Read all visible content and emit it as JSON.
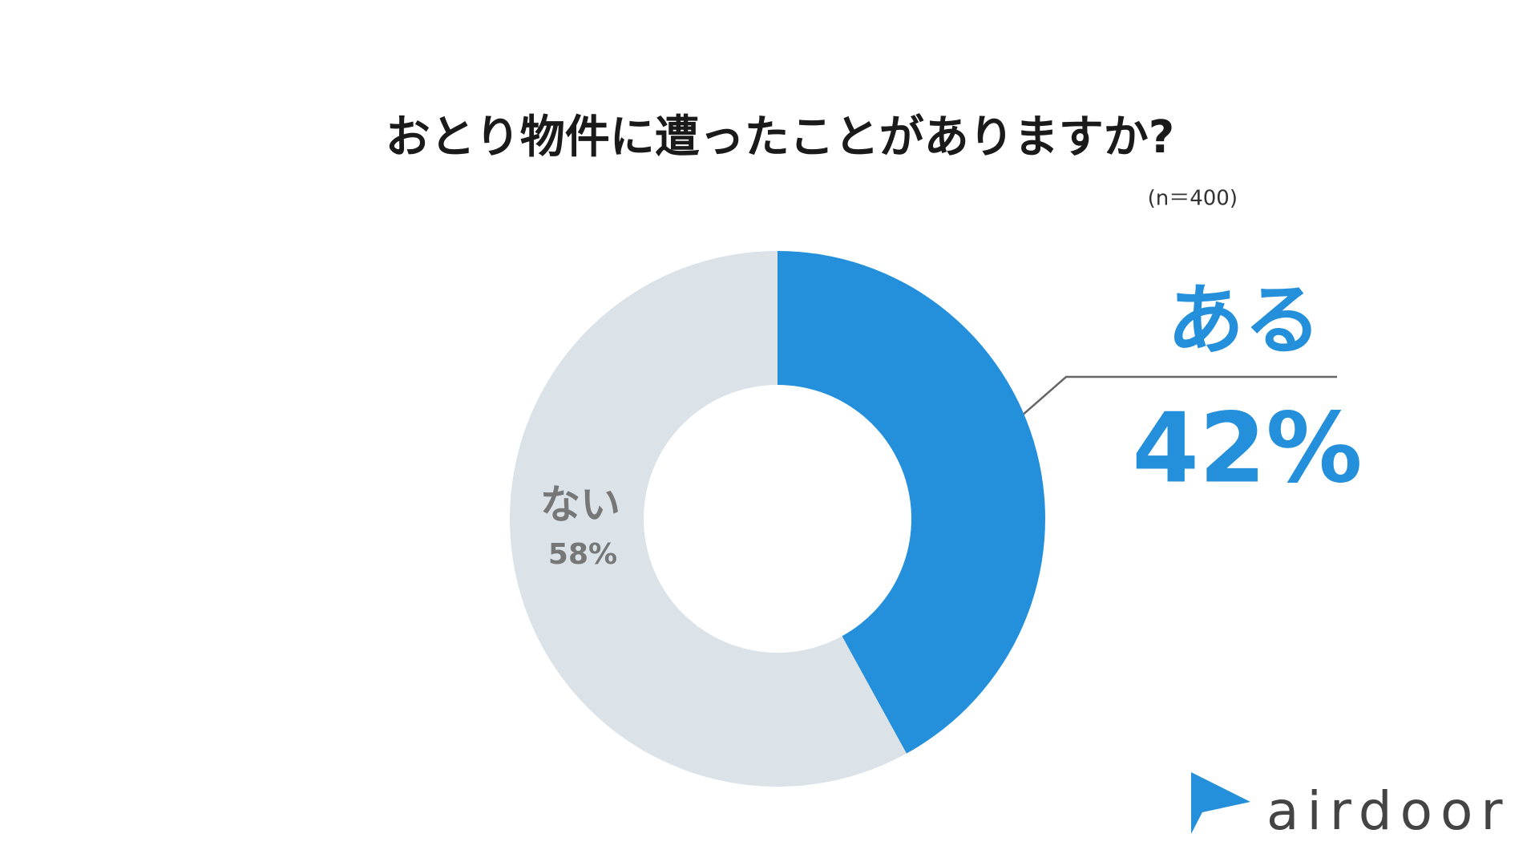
{
  "chart_data": {
    "type": "donut",
    "title": "おとり物件に遭ったことがありますか?",
    "subtitle": "(n＝400)",
    "categories": [
      "ある",
      "ない"
    ],
    "values": [
      42,
      58
    ],
    "value_labels": [
      "42%",
      "58%"
    ],
    "colors": [
      "#2490db",
      "#dbe3e9"
    ],
    "logo_text": "airdoor"
  }
}
